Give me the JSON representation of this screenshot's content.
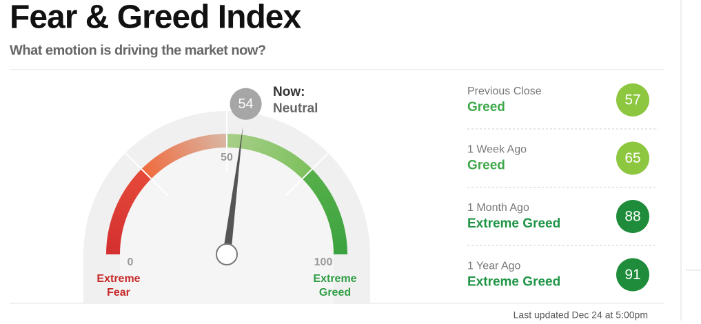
{
  "header": {
    "title": "Fear & Greed Index",
    "subtitle": "What emotion is driving the market now?"
  },
  "gauge": {
    "value": 54,
    "now_label": "Now:",
    "rating": "Neutral",
    "ticks": [
      0,
      50,
      100
    ],
    "low_label": [
      "Extreme",
      "Fear"
    ],
    "high_label": [
      "Extreme",
      "Greed"
    ]
  },
  "history": [
    {
      "label": "Previous Close",
      "rating": "Greed",
      "value": 57,
      "color": "#8dc63f",
      "text_color": "#3fa84a"
    },
    {
      "label": "1 Week Ago",
      "rating": "Greed",
      "value": 65,
      "color": "#8dc63f",
      "text_color": "#3fa84a"
    },
    {
      "label": "1 Month Ago",
      "rating": "Extreme Greed",
      "value": 88,
      "color": "#1e8c3a",
      "text_color": "#1e9445"
    },
    {
      "label": "1 Year Ago",
      "rating": "Extreme Greed",
      "value": 91,
      "color": "#1e8c3a",
      "text_color": "#1e9445"
    }
  ],
  "footer": "Last updated Dec 24 at 5:00pm"
}
